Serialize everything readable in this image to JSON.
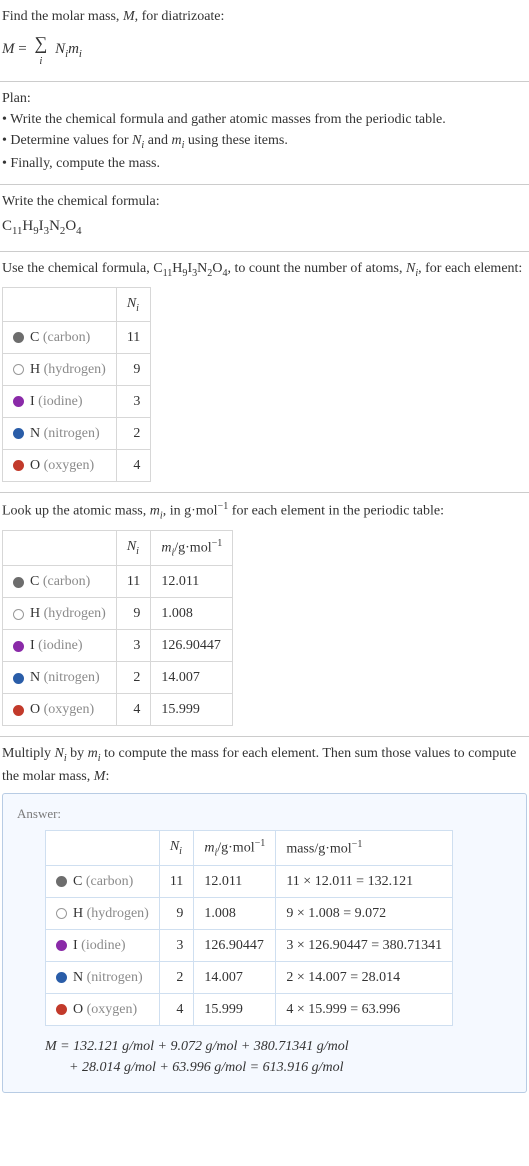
{
  "intro": {
    "line1_a": "Find the molar mass, ",
    "line1_b": ", for diatrizoate:",
    "M": "M",
    "eq_rhs": "N",
    "eq_rhs2": "m",
    "sum_index": "i"
  },
  "plan": {
    "title": "Plan:",
    "b1": "• Write the chemical formula and gather atomic masses from the periodic table.",
    "b2_a": "• Determine values for ",
    "b2_b": " and ",
    "b2_c": " using these items.",
    "b3": "• Finally, compute the mass."
  },
  "writecf": {
    "title": "Write the chemical formula:",
    "base": "C",
    "s1": "11",
    "H": "H",
    "s2": "9",
    "I": "I",
    "s3": "3",
    "N": "N",
    "s4": "2",
    "O": "O",
    "s5": "4"
  },
  "usecf": {
    "a": "Use the chemical formula, ",
    "b": ", to count the number of atoms, ",
    "c": ", for each element:"
  },
  "table1": {
    "hdr_Ni_N": "N",
    "hdr_Ni_i": "i",
    "rows": [
      {
        "swatch": "#6d6d6d",
        "fill": "#6d6d6d",
        "sym": "C ",
        "name": "(carbon)",
        "Ni": "11"
      },
      {
        "swatch": "#999999",
        "fill": "#ffffff",
        "sym": "H ",
        "name": "(hydrogen)",
        "Ni": "9"
      },
      {
        "swatch": "#8a2aa8",
        "fill": "#8a2aa8",
        "sym": "I ",
        "name": "(iodine)",
        "Ni": "3"
      },
      {
        "swatch": "#2a5da8",
        "fill": "#2a5da8",
        "sym": "N ",
        "name": "(nitrogen)",
        "Ni": "2"
      },
      {
        "swatch": "#c23a2b",
        "fill": "#c23a2b",
        "sym": "O ",
        "name": "(oxygen)",
        "Ni": "4"
      }
    ]
  },
  "lookup": {
    "a": "Look up the atomic mass, ",
    "b": ", in g·mol",
    "c": " for each element in the periodic table:",
    "neg1": "−1"
  },
  "table2": {
    "hdr_m": "m",
    "hdr_units": "/g·mol",
    "rows": [
      {
        "swatch": "#6d6d6d",
        "fill": "#6d6d6d",
        "sym": "C ",
        "name": "(carbon)",
        "Ni": "11",
        "mi": "12.011"
      },
      {
        "swatch": "#999999",
        "fill": "#ffffff",
        "sym": "H ",
        "name": "(hydrogen)",
        "Ni": "9",
        "mi": "1.008"
      },
      {
        "swatch": "#8a2aa8",
        "fill": "#8a2aa8",
        "sym": "I ",
        "name": "(iodine)",
        "Ni": "3",
        "mi": "126.90447"
      },
      {
        "swatch": "#2a5da8",
        "fill": "#2a5da8",
        "sym": "N ",
        "name": "(nitrogen)",
        "Ni": "2",
        "mi": "14.007"
      },
      {
        "swatch": "#c23a2b",
        "fill": "#c23a2b",
        "sym": "O ",
        "name": "(oxygen)",
        "Ni": "4",
        "mi": "15.999"
      }
    ]
  },
  "multiply": {
    "a": "Multiply ",
    "b": " by ",
    "c": " to compute the mass for each element. Then sum those values to compute the molar mass, ",
    "d": ":"
  },
  "answer": {
    "label": "Answer:",
    "hdr_mass": "mass/g·mol",
    "rows": [
      {
        "swatch": "#6d6d6d",
        "fill": "#6d6d6d",
        "sym": "C ",
        "name": "(carbon)",
        "Ni": "11",
        "mi": "12.011",
        "mass": "11 × 12.011 = 132.121"
      },
      {
        "swatch": "#999999",
        "fill": "#ffffff",
        "sym": "H ",
        "name": "(hydrogen)",
        "Ni": "9",
        "mi": "1.008",
        "mass": "9 × 1.008 = 9.072"
      },
      {
        "swatch": "#8a2aa8",
        "fill": "#8a2aa8",
        "sym": "I ",
        "name": "(iodine)",
        "Ni": "3",
        "mi": "126.90447",
        "mass": "3 × 126.90447 = 380.71341"
      },
      {
        "swatch": "#2a5da8",
        "fill": "#2a5da8",
        "sym": "N ",
        "name": "(nitrogen)",
        "Ni": "2",
        "mi": "14.007",
        "mass": "2 × 14.007 = 28.014"
      },
      {
        "swatch": "#c23a2b",
        "fill": "#c23a2b",
        "sym": "O ",
        "name": "(oxygen)",
        "Ni": "4",
        "mi": "15.999",
        "mass": "4 × 15.999 = 63.996"
      }
    ],
    "eq1": "M = 132.121 g/mol + 9.072 g/mol + 380.71341 g/mol",
    "eq2": "+ 28.014 g/mol + 63.996 g/mol = 613.916 g/mol"
  }
}
